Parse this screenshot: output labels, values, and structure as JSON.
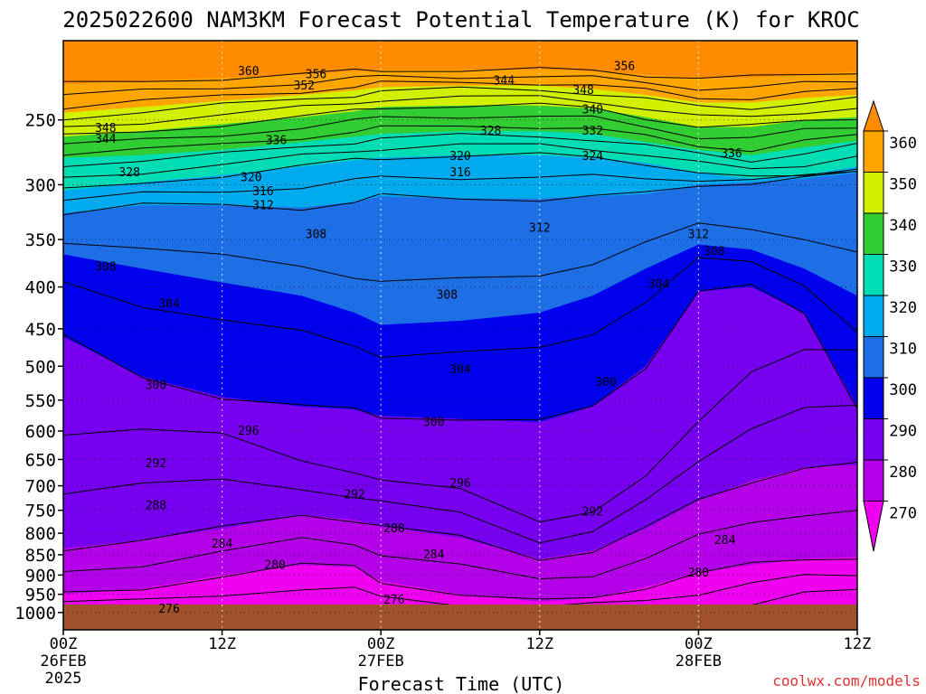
{
  "chart_data": {
    "type": "heatmap",
    "title": "2025022600 NAM3KM Forecast Potential Temperature (K) for KROC",
    "xlabel": "Forecast Time (UTC)",
    "ylabel": "",
    "credit": "coolwx.com/models",
    "x_ticks": [
      {
        "hour": 0,
        "l1": "00Z",
        "l2": "26FEB",
        "l3": "2025"
      },
      {
        "hour": 12,
        "l1": "12Z",
        "l2": "",
        "l3": ""
      },
      {
        "hour": 24,
        "l1": "00Z",
        "l2": "27FEB",
        "l3": ""
      },
      {
        "hour": 36,
        "l1": "12Z",
        "l2": "",
        "l3": ""
      },
      {
        "hour": 48,
        "l1": "00Z",
        "l2": "28FEB",
        "l3": ""
      },
      {
        "hour": 60,
        "l1": "12Z",
        "l2": "",
        "l3": ""
      }
    ],
    "xlim": [
      0,
      60
    ],
    "y_ticks": [
      250,
      300,
      350,
      400,
      450,
      500,
      550,
      600,
      650,
      700,
      750,
      800,
      850,
      900,
      950,
      1000
    ],
    "ylim": [
      1050,
      200
    ],
    "y_scale": "log",
    "colorbar": {
      "levels": [
        270,
        280,
        290,
        300,
        310,
        320,
        330,
        340,
        350,
        360
      ],
      "colors": [
        "#f000f0",
        "#b400e8",
        "#7800f0",
        "#0000ec",
        "#1e6ee6",
        "#00aaee",
        "#00dcb4",
        "#32cd32",
        "#d2f000",
        "#ffa500"
      ]
    },
    "contour_levels": [
      272,
      276,
      280,
      284,
      288,
      292,
      296,
      300,
      304,
      308,
      312,
      316,
      320,
      324,
      328,
      332,
      336,
      340,
      344,
      348,
      352,
      356,
      360
    ],
    "contour_labels": [
      {
        "text": "360",
        "hour": 14.0,
        "p": 218
      },
      {
        "text": "356",
        "hour": 19.1,
        "p": 220
      },
      {
        "text": "352",
        "hour": 18.2,
        "p": 227
      },
      {
        "text": "344",
        "hour": 33.3,
        "p": 224
      },
      {
        "text": "348",
        "hour": 39.3,
        "p": 230
      },
      {
        "text": "356",
        "hour": 42.4,
        "p": 215
      },
      {
        "text": "340",
        "hour": 40.0,
        "p": 243
      },
      {
        "text": "348",
        "hour": 3.2,
        "p": 256
      },
      {
        "text": "344",
        "hour": 3.2,
        "p": 264
      },
      {
        "text": "328",
        "hour": 32.3,
        "p": 258
      },
      {
        "text": "332",
        "hour": 40.0,
        "p": 258
      },
      {
        "text": "336",
        "hour": 16.1,
        "p": 265
      },
      {
        "text": "336",
        "hour": 50.5,
        "p": 275
      },
      {
        "text": "324",
        "hour": 40.0,
        "p": 277
      },
      {
        "text": "320",
        "hour": 30.0,
        "p": 277
      },
      {
        "text": "316",
        "hour": 30.0,
        "p": 290
      },
      {
        "text": "328",
        "hour": 5.0,
        "p": 290
      },
      {
        "text": "320",
        "hour": 14.2,
        "p": 294
      },
      {
        "text": "316",
        "hour": 15.1,
        "p": 306
      },
      {
        "text": "312",
        "hour": 15.1,
        "p": 318
      },
      {
        "text": "308",
        "hour": 19.1,
        "p": 345
      },
      {
        "text": "312",
        "hour": 36.0,
        "p": 339
      },
      {
        "text": "312",
        "hour": 48.0,
        "p": 345
      },
      {
        "text": "308",
        "hour": 49.2,
        "p": 362
      },
      {
        "text": "308",
        "hour": 3.2,
        "p": 378
      },
      {
        "text": "304",
        "hour": 45.0,
        "p": 397
      },
      {
        "text": "308",
        "hour": 29.0,
        "p": 409
      },
      {
        "text": "304",
        "hour": 8.0,
        "p": 420
      },
      {
        "text": "304",
        "hour": 30.0,
        "p": 505
      },
      {
        "text": "300",
        "hour": 7.0,
        "p": 528
      },
      {
        "text": "300",
        "hour": 41.0,
        "p": 523
      },
      {
        "text": "300",
        "hour": 28.0,
        "p": 586
      },
      {
        "text": "296",
        "hour": 14.0,
        "p": 600
      },
      {
        "text": "292",
        "hour": 7.0,
        "p": 658
      },
      {
        "text": "296",
        "hour": 30.0,
        "p": 695
      },
      {
        "text": "292",
        "hour": 22.0,
        "p": 718
      },
      {
        "text": "288",
        "hour": 7.0,
        "p": 740
      },
      {
        "text": "292",
        "hour": 40.0,
        "p": 753
      },
      {
        "text": "288",
        "hour": 25.0,
        "p": 790
      },
      {
        "text": "284",
        "hour": 12.0,
        "p": 825
      },
      {
        "text": "284",
        "hour": 28.0,
        "p": 850
      },
      {
        "text": "284",
        "hour": 50.0,
        "p": 816
      },
      {
        "text": "280",
        "hour": 16.0,
        "p": 875
      },
      {
        "text": "280",
        "hour": 48.0,
        "p": 895
      },
      {
        "text": "276",
        "hour": 8.0,
        "p": 990
      },
      {
        "text": "276",
        "hour": 25.0,
        "p": 966
      }
    ]
  }
}
